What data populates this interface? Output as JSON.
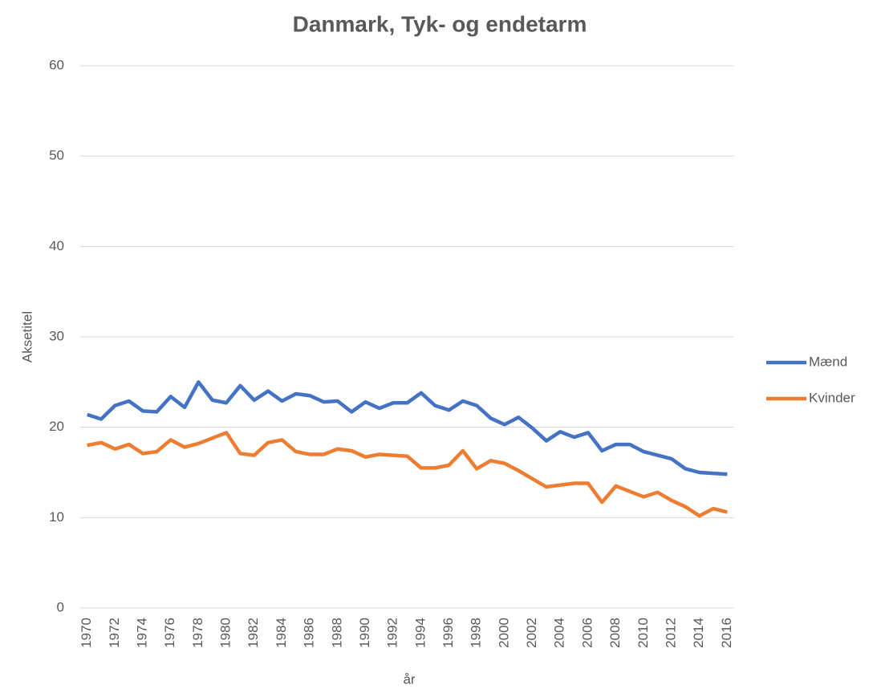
{
  "chart_data": {
    "type": "line",
    "title": "Danmark, Tyk- og endetarm",
    "x_label": "år",
    "y_label": "Aksetitel",
    "categories": [
      "1970",
      null,
      "1972",
      null,
      "1974",
      null,
      "1976",
      null,
      "1978",
      null,
      "1980",
      null,
      "1982",
      null,
      "1984",
      null,
      "1986",
      null,
      "1988",
      null,
      "1990",
      null,
      "1992",
      null,
      "1994",
      null,
      "1996",
      null,
      "1998",
      null,
      "2000",
      null,
      "2002",
      null,
      "2004",
      null,
      "2006",
      null,
      "2008",
      null,
      "2010",
      null,
      "2012",
      null,
      "2014",
      null,
      "2016"
    ],
    "series": [
      {
        "name": "Mænd",
        "color": "#4472c4",
        "values": [
          21.4,
          20.9,
          22.4,
          22.9,
          21.8,
          21.7,
          23.4,
          22.2,
          25.0,
          23.0,
          22.7,
          24.6,
          23.0,
          24.0,
          22.9,
          23.7,
          23.5,
          22.8,
          22.9,
          21.7,
          22.8,
          22.1,
          22.7,
          22.7,
          23.8,
          22.4,
          21.9,
          22.9,
          22.4,
          21.0,
          20.3,
          21.1,
          19.9,
          18.5,
          19.5,
          18.9,
          19.4,
          17.4,
          18.1,
          18.1,
          17.3,
          16.9,
          16.5,
          15.4,
          15.0,
          14.9,
          14.8
        ]
      },
      {
        "name": "Kvinder",
        "color": "#ed7d31",
        "values": [
          18.0,
          18.3,
          17.6,
          18.1,
          17.1,
          17.3,
          18.6,
          17.8,
          18.2,
          18.8,
          19.4,
          17.1,
          16.9,
          18.3,
          18.6,
          17.3,
          17.0,
          17.0,
          17.6,
          17.4,
          16.7,
          17.0,
          16.9,
          16.8,
          15.5,
          15.5,
          15.8,
          17.4,
          15.4,
          16.3,
          16.0,
          15.2,
          14.3,
          13.4,
          13.6,
          13.8,
          13.8,
          11.7,
          13.5,
          12.9,
          12.3,
          12.8,
          11.9,
          11.2,
          10.2,
          11.0,
          10.6
        ]
      }
    ],
    "ylim": [
      0,
      60
    ],
    "yticks": [
      0,
      10,
      20,
      30,
      40,
      50,
      60
    ],
    "grid": true,
    "legend": "right"
  }
}
